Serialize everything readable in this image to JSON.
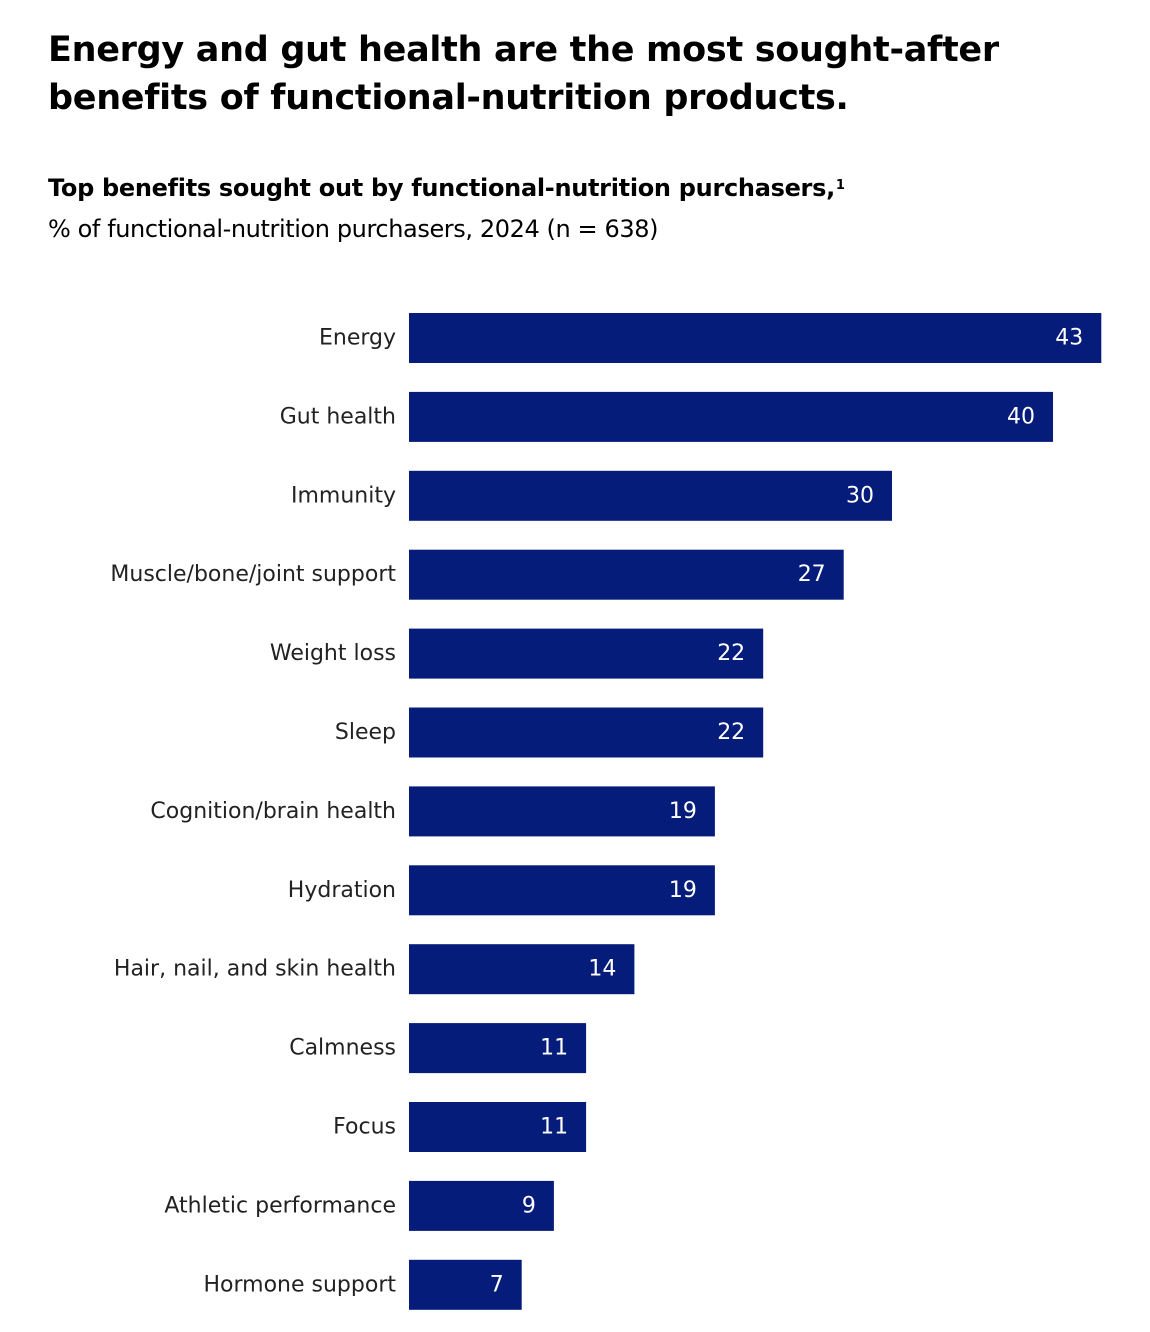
{
  "headline": "Energy and gut health are the most sought-after benefits of functional-nutrition products.",
  "colors": {
    "bar": "#051c7a",
    "text": "#000000",
    "value_label": "#ffffff"
  },
  "chart_data": {
    "type": "bar",
    "orientation": "horizontal",
    "title": "Top benefits sought out by functional-nutrition purchasers,",
    "title_footnote": "1",
    "subtitle": "% of functional-nutrition purchasers, 2024 (n = 638)",
    "categories": [
      "Energy",
      "Gut health",
      "Immunity",
      "Muscle/bone/joint support",
      "Weight loss",
      "Sleep",
      "Cognition/brain health",
      "Hydration",
      "Hair, nail, and skin health",
      "Calmness",
      "Focus",
      "Athletic performance",
      "Hormone support"
    ],
    "values": [
      43,
      40,
      30,
      27,
      22,
      22,
      19,
      19,
      14,
      11,
      11,
      9,
      7
    ],
    "grid": false,
    "legend": "none"
  }
}
